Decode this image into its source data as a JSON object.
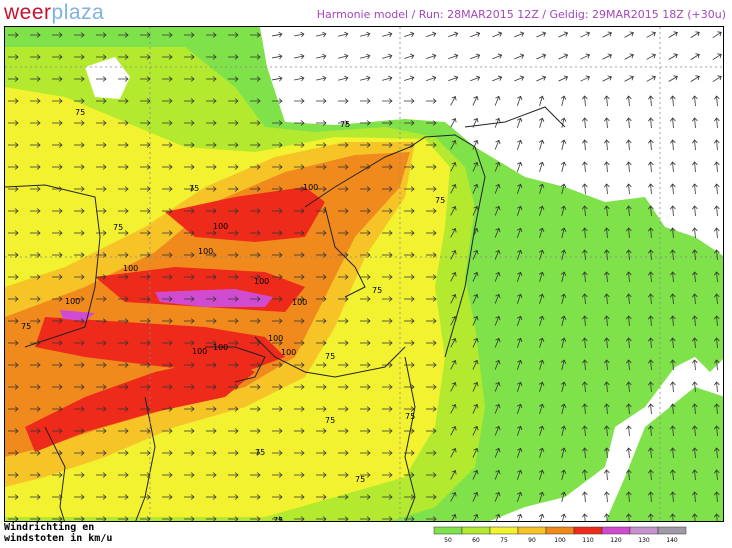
{
  "header": {
    "logo_part1": "weer",
    "logo_part2": "plaza",
    "run_info": "Harmonie model / Run: 28MAR2015 12Z / Geldig: 29MAR2015 18Z (+30u)"
  },
  "legend": {
    "title_line1": "Windrichting en",
    "title_line2": "windstoten in km/u",
    "bins": [
      {
        "value": "50",
        "color": "#7fe24a"
      },
      {
        "value": "60",
        "color": "#b3ea2f"
      },
      {
        "value": "75",
        "color": "#f2f230"
      },
      {
        "value": "90",
        "color": "#f7c428"
      },
      {
        "value": "100",
        "color": "#f08a1c"
      },
      {
        "value": "110",
        "color": "#ee2a1a"
      },
      {
        "value": "120",
        "color": "#d14bd1"
      },
      {
        "value": "130",
        "color": "#c793cf"
      },
      {
        "value": "140",
        "color": "#a09aa8"
      }
    ]
  },
  "map": {
    "contour_labels": [
      "75",
      "75",
      "75",
      "75",
      "75",
      "75",
      "75",
      "75",
      "75",
      "75",
      "75",
      "75",
      "75",
      "100",
      "100",
      "100",
      "100",
      "100",
      "100",
      "100",
      "100",
      "100",
      "100",
      "100"
    ],
    "arrow_direction": "wind-arrows"
  }
}
